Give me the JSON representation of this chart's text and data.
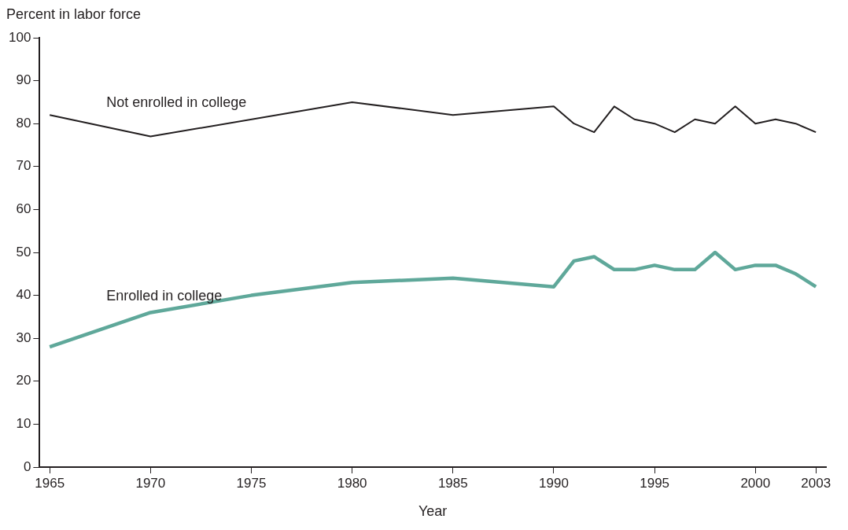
{
  "chart_data": {
    "type": "line",
    "ylabel": "Percent in labor force",
    "xlabel": "Year",
    "xlim": [
      1964.5,
      2003.5
    ],
    "xticks": [
      1965,
      1970,
      1975,
      1980,
      1985,
      1990,
      1995,
      2000,
      2003
    ],
    "ylim": [
      0,
      100
    ],
    "yticks": [
      0,
      10,
      20,
      30,
      40,
      50,
      60,
      70,
      80,
      90,
      100
    ],
    "grid": false,
    "legend": false,
    "marker": "none",
    "line_style": "solid",
    "series": [
      {
        "name": "Not enrolled in college",
        "color": "#231f20",
        "x": [
          1965,
          1970,
          1980,
          1985,
          1990,
          1991,
          1992,
          1993,
          1994,
          1995,
          1996,
          1997,
          1998,
          1999,
          2000,
          2001,
          2002,
          2003
        ],
        "values": [
          82,
          77,
          85,
          82,
          84,
          80,
          78,
          84,
          81,
          80,
          78,
          81,
          80,
          84,
          80,
          81,
          80,
          78
        ]
      },
      {
        "name": "Enrolled in college",
        "color": "#5fa89a",
        "x": [
          1965,
          1970,
          1975,
          1980,
          1985,
          1990,
          1991,
          1992,
          1993,
          1994,
          1995,
          1996,
          1997,
          1998,
          1999,
          2000,
          2001,
          2002,
          2003
        ],
        "values": [
          28,
          36,
          40,
          43,
          44,
          42,
          48,
          49,
          46,
          46,
          47,
          46,
          46,
          50,
          46,
          47,
          47,
          45,
          42
        ]
      }
    ]
  }
}
